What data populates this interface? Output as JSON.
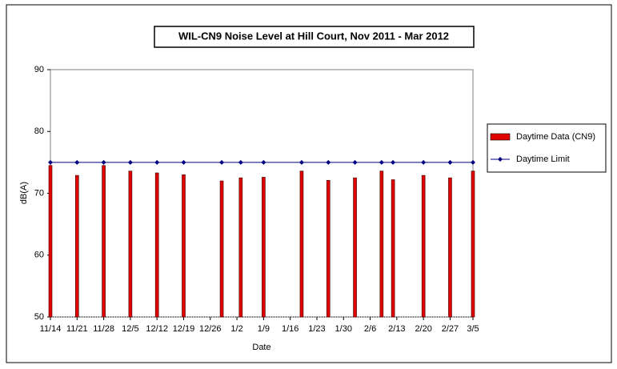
{
  "chart_data": {
    "type": "bar",
    "title": "WIL-CN9 Noise Level at Hill Court, Nov 2011 - Mar 2012",
    "x_label": "Date",
    "y_label": "dB(A)",
    "x": [
      "11/14",
      "11/21",
      "11/28",
      "12/5",
      "12/12",
      "12/19",
      "12/29",
      "1/3",
      "1/9",
      "1/19",
      "1/26",
      "2/2",
      "2/9",
      "2/12",
      "2/20",
      "2/27",
      "3/5"
    ],
    "series": [
      {
        "name": "Daytime Data (CN9)",
        "type": "bar",
        "color": "#e00000",
        "values": [
          74.5,
          72.9,
          74.5,
          73.6,
          73.3,
          73.0,
          72.0,
          72.5,
          72.6,
          73.6,
          72.1,
          72.5,
          73.6,
          72.2,
          72.9,
          72.5,
          73.6
        ]
      },
      {
        "name": "Daytime Limit",
        "type": "line",
        "color": "#000080",
        "values": [
          75,
          75,
          75,
          75,
          75,
          75,
          75,
          75,
          75,
          75,
          75,
          75,
          75,
          75,
          75,
          75,
          75
        ]
      }
    ],
    "ylim": [
      50,
      90
    ],
    "yticks": [
      50,
      60,
      70,
      80,
      90
    ],
    "xlim": [
      "11/14",
      "3/5"
    ],
    "xticks": [
      "11/14",
      "11/21",
      "11/28",
      "12/5",
      "12/12",
      "12/19",
      "12/26",
      "1/2",
      "1/9",
      "1/16",
      "1/23",
      "1/30",
      "2/6",
      "2/13",
      "2/20",
      "2/27",
      "3/5"
    ],
    "legend": "right"
  }
}
